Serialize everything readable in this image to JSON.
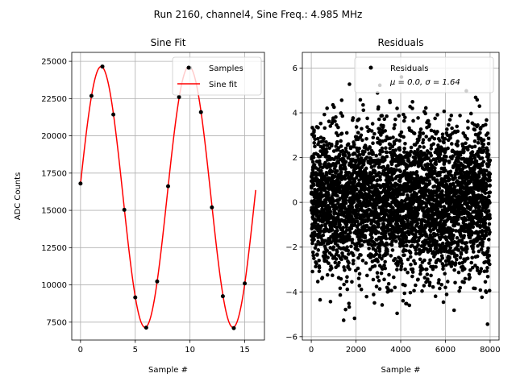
{
  "figure": {
    "suptitle": "Run 2160, channel4, Sine Freq.: 4.985 MHz"
  },
  "chart_data": [
    {
      "type": "scatter",
      "title": "Sine Fit",
      "xlabel": "Sample #",
      "ylabel": "ADC Counts",
      "xlim": [
        -0.8,
        16.8
      ],
      "ylim": [
        6300,
        25600
      ],
      "xticks": [
        0,
        5,
        10,
        15
      ],
      "yticks": [
        7500,
        10000,
        12500,
        15000,
        17500,
        20000,
        22500,
        25000
      ],
      "grid": true,
      "legend": "top-right",
      "samples": {
        "name": "Samples",
        "color": "#000000",
        "x": [
          0,
          1,
          2,
          3,
          4,
          5,
          6,
          7,
          8,
          9,
          10,
          11,
          12,
          13,
          14,
          15
        ],
        "y": [
          16800,
          22680,
          24650,
          21430,
          15040,
          9160,
          7130,
          10230,
          16620,
          22600,
          24560,
          21590,
          15200,
          9240,
          7100,
          10100
        ]
      },
      "fit": {
        "name": "Sine fit",
        "color": "#ff0000",
        "amplitude": 8750,
        "offset": 15900,
        "period": 8.03,
        "phase": 0.1,
        "x_range": [
          0,
          16
        ]
      }
    },
    {
      "type": "scatter",
      "title": "Residuals",
      "xlabel": "Sample #",
      "ylabel": "",
      "xlim": [
        -400,
        8400
      ],
      "ylim": [
        -6.15,
        6.7
      ],
      "xticks": [
        0,
        2000,
        4000,
        6000,
        8000
      ],
      "yticks": [
        -6,
        -4,
        -2,
        0,
        2,
        4,
        6
      ],
      "grid": true,
      "legend": "top-right",
      "series": [
        {
          "name": "Residuals",
          "color": "#000000",
          "n_points": 8000,
          "mean": 0.0,
          "sigma": 1.64
        }
      ],
      "legend_stats": "μ = 0.0, σ = 1.64"
    }
  ]
}
